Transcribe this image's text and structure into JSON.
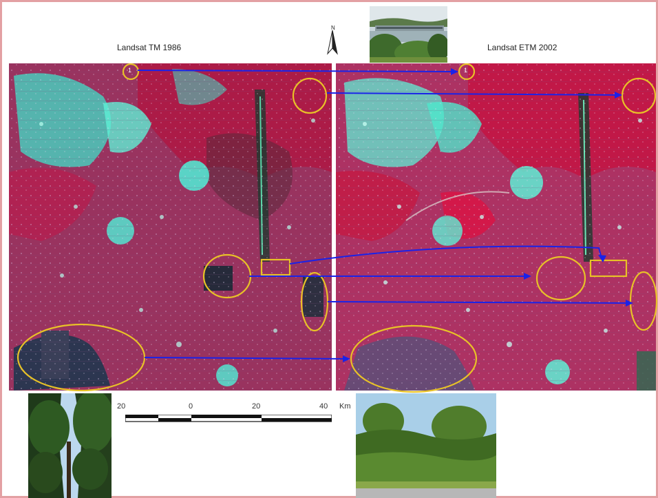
{
  "titles": {
    "left": "Landsat TM 1986",
    "right": "Landsat ETM 2002"
  },
  "north_arrow": {
    "label": "N",
    "icon": "north-arrow-icon"
  },
  "scale_bar": {
    "ticks": [
      "20",
      "0",
      "20",
      "40"
    ],
    "unit": "Km"
  },
  "photos": {
    "top": "photo-river-dam",
    "bottom_left": "photo-tall-forest",
    "bottom_right": "photo-shrub-vegetation"
  },
  "markers": {
    "left_small_label": "1",
    "right_small_label": "1"
  },
  "colors": {
    "frame_border": "#e3a0a3",
    "vegetation_red": "#b0164a",
    "urban_cyan": "#3fe0c8",
    "circle_yellow": "#e8c227",
    "arrow_blue": "#1a22e8"
  }
}
